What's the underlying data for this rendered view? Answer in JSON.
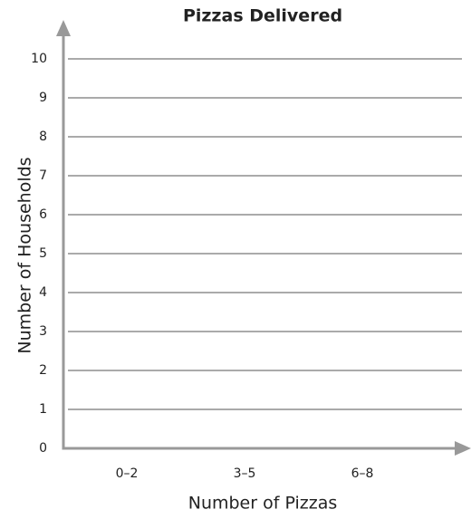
{
  "chart_data": {
    "type": "bar",
    "title": "Pizzas Delivered",
    "x_label": "Number of Pizzas",
    "y_label": "Number of Households",
    "categories": [
      "0–2",
      "3–5",
      "6–8"
    ],
    "ylim": [
      0,
      10
    ],
    "yticks": [
      0,
      1,
      2,
      3,
      4,
      5,
      6,
      7,
      8,
      9,
      10
    ],
    "grid": true
  }
}
